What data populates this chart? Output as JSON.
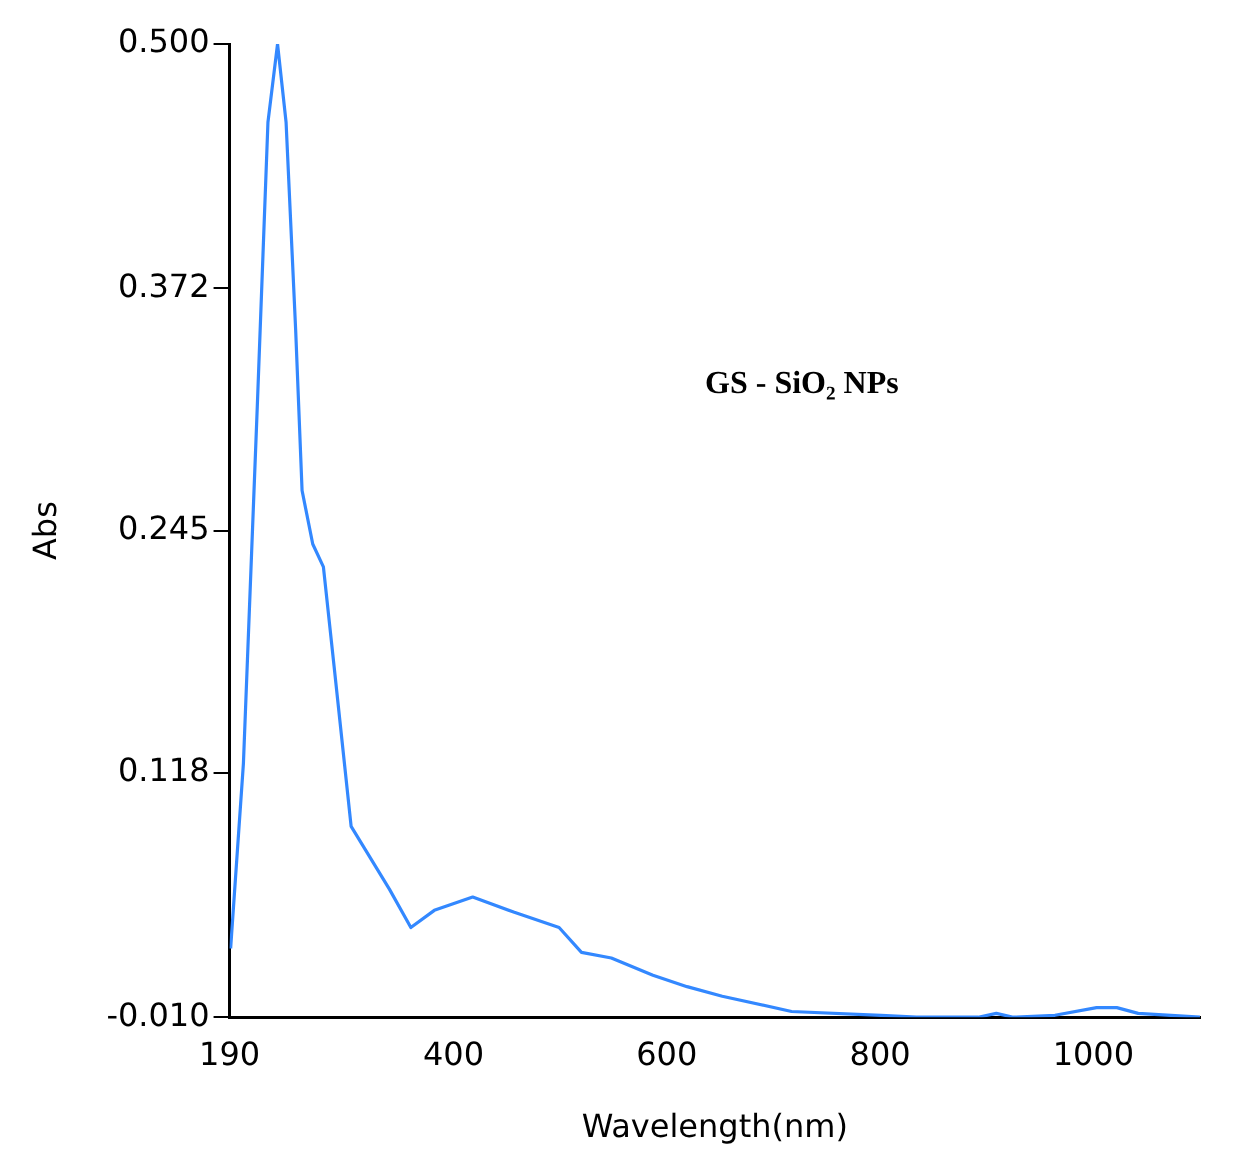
{
  "chart_data": {
    "type": "line",
    "xlabel": "Wavelength(nm)",
    "ylabel": "Abs",
    "annotations": [
      "GS - SiO₂ NPs"
    ],
    "x": [
      191,
      203,
      216,
      226,
      235,
      243,
      252,
      258,
      268,
      278,
      288,
      304,
      340,
      360,
      382,
      418,
      457,
      499,
      520,
      548,
      587,
      619,
      652,
      717,
      801,
      834,
      892,
      909,
      925,
      964,
      1003,
      1022,
      1042,
      1100
    ],
    "series": [
      {
        "color": "#3388ff",
        "values": [
          0.026,
          0.123,
          0.31,
          0.459,
          0.5,
          0.459,
          0.35,
          0.266,
          0.238,
          0.226,
          0.174,
          0.09,
          0.057,
          0.037,
          0.046,
          0.053,
          0.045,
          0.037,
          0.024,
          0.021,
          0.012,
          0.006,
          0.001,
          -0.007,
          -0.009,
          -0.01,
          -0.01,
          -0.008,
          -0.01,
          -0.009,
          -0.005,
          -0.005,
          -0.008,
          -0.01
        ]
      }
    ],
    "xlim": [
      190,
      1100
    ],
    "xticks": [
      190,
      400,
      600,
      800,
      1000
    ],
    "ylim": [
      -0.01,
      0.5
    ],
    "yticks": [
      {
        "value": -0.01,
        "label": "-0.010"
      },
      0.118,
      0.245,
      0.372,
      {
        "value": 0.5,
        "label": "0.500"
      }
    ],
    "grid": false,
    "legend": false,
    "marker": "none",
    "line_style": "solid"
  }
}
